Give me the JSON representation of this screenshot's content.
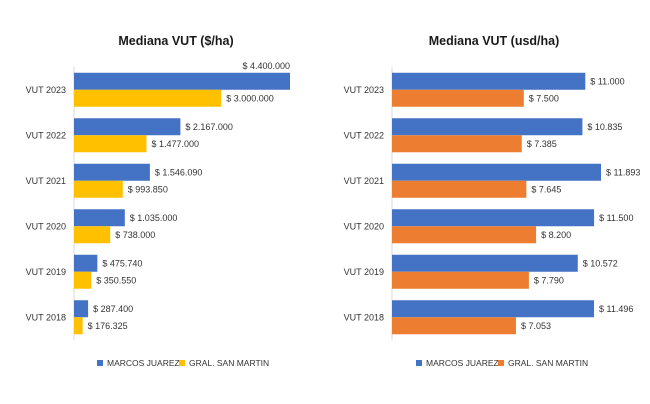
{
  "chart_data": [
    {
      "type": "bar",
      "orientation": "horizontal",
      "title": "Mediana VUT ($/ha)",
      "categories": [
        "VUT 2023",
        "VUT 2022",
        "VUT 2021",
        "VUT 2020",
        "VUT 2019",
        "VUT 2018"
      ],
      "series": [
        {
          "name": "MARCOS JUAREZ",
          "color": "#4472C4",
          "values": [
            4400000,
            2167000,
            1546090,
            1035000,
            475740,
            287400
          ],
          "labels": [
            "$ 4.400.000",
            "$ 2.167.000",
            "$ 1.546.090",
            "$ 1.035.000",
            "$ 475.740",
            "$ 287.400"
          ]
        },
        {
          "name": "GRAL. SAN MARTIN",
          "color": "#FFC000",
          "values": [
            3000000,
            1477000,
            993850,
            738000,
            350550,
            176325
          ],
          "labels": [
            "$ 3.000.000",
            "$ 1.477.000",
            "$ 993.850",
            "$ 738.000",
            "$ 350.550",
            "$ 176.325"
          ]
        }
      ],
      "xlim": [
        0,
        4400000
      ],
      "grid": false,
      "legend": "bottom"
    },
    {
      "type": "bar",
      "orientation": "horizontal",
      "title": "Mediana VUT (usd/ha)",
      "categories": [
        "VUT 2023",
        "VUT 2022",
        "VUT 2021",
        "VUT 2020",
        "VUT 2019",
        "VUT 2018"
      ],
      "series": [
        {
          "name": "MARCOS JUAREZ",
          "color": "#4472C4",
          "values": [
            11000,
            10835,
            11893,
            11500,
            10572,
            11496
          ],
          "labels": [
            "$ 11.000",
            "$ 10.835",
            "$ 11.893",
            "$ 11.500",
            "$ 10.572",
            "$ 11.496"
          ]
        },
        {
          "name": "GRAL. SAN MARTIN",
          "color": "#ED7D31",
          "values": [
            7500,
            7385,
            7645,
            8200,
            7790,
            7053
          ],
          "labels": [
            "$ 7.500",
            "$ 7.385",
            "$ 7.645",
            "$ 8.200",
            "$ 7.790",
            "$ 7.053"
          ]
        }
      ],
      "xlim": [
        0,
        11893
      ],
      "grid": false,
      "legend": "bottom"
    }
  ]
}
